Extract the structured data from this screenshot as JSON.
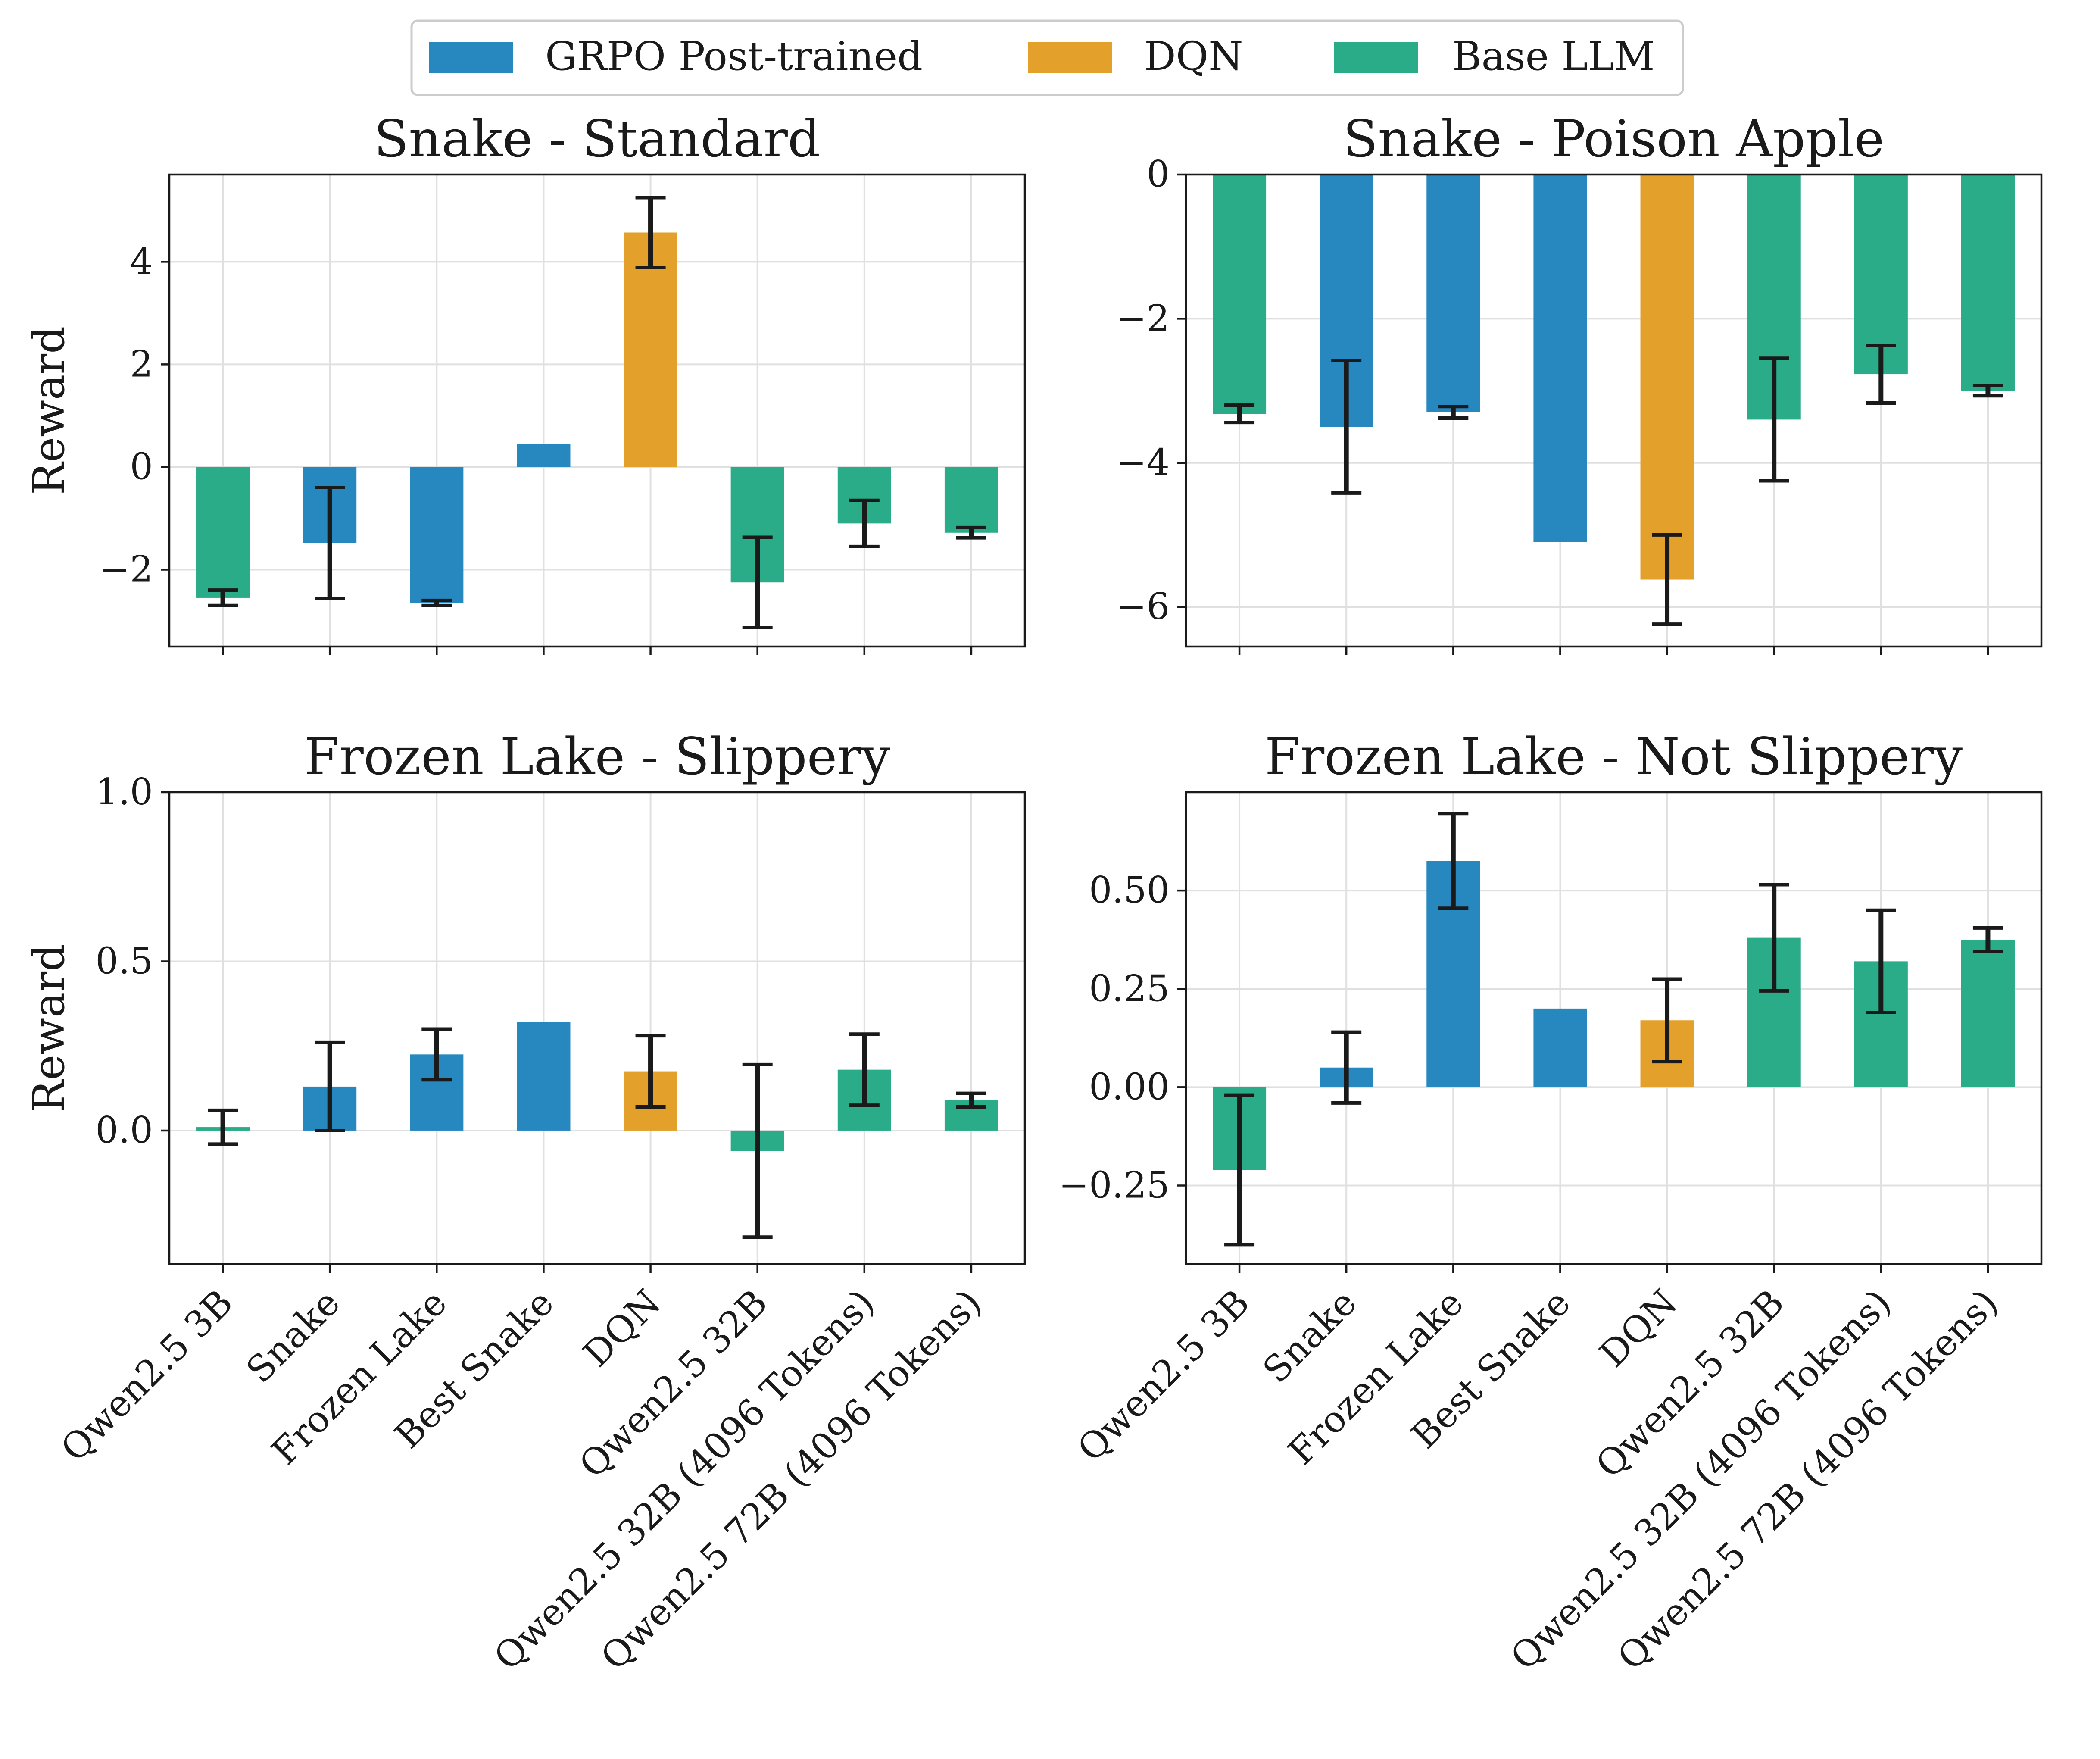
{
  "legend": {
    "entries": [
      {
        "label": "GRPO Post-trained",
        "color": "#2788c0"
      },
      {
        "label": "DQN",
        "color": "#e3a12c"
      },
      {
        "label": "Base LLM",
        "color": "#2aac88"
      }
    ]
  },
  "chart_data": [
    {
      "type": "bar",
      "title": "Snake - Standard",
      "xlabel": "",
      "ylabel": "Reward",
      "ylim": [
        -3.5,
        5.7
      ],
      "yticks": [
        -2,
        0,
        2,
        4
      ],
      "ytick_labels": [
        "−2",
        "0",
        "2",
        "4"
      ],
      "show_xtick_labels": false,
      "categories": [
        "Qwen2.5 3B",
        "Snake",
        "Frozen Lake",
        "Best Snake",
        "DQN",
        "Qwen2.5 32B",
        "Qwen2.5 32B (4096 Tokens)",
        "Qwen2.5 72B (4096 Tokens)"
      ],
      "groups": [
        "Base LLM",
        "GRPO Post-trained",
        "GRPO Post-trained",
        "GRPO Post-trained",
        "DQN",
        "Base LLM",
        "Base LLM",
        "Base LLM"
      ],
      "values": [
        -2.55,
        -1.48,
        -2.65,
        0.45,
        4.57,
        -2.25,
        -1.1,
        -1.28
      ],
      "errors": [
        0.15,
        1.08,
        0.05,
        0,
        0.68,
        0.88,
        0.45,
        0.1
      ]
    },
    {
      "type": "bar",
      "title": "Snake - Poison Apple",
      "xlabel": "",
      "ylabel": "",
      "ylim": [
        -6.55,
        0
      ],
      "yticks": [
        -6,
        -4,
        -2,
        0
      ],
      "ytick_labels": [
        "−6",
        "−4",
        "−2",
        "0"
      ],
      "show_xtick_labels": false,
      "categories": [
        "Qwen2.5 3B",
        "Snake",
        "Frozen Lake",
        "Best Snake",
        "DQN",
        "Qwen2.5 32B",
        "Qwen2.5 32B (4096 Tokens)",
        "Qwen2.5 72B (4096 Tokens)"
      ],
      "groups": [
        "Base LLM",
        "GRPO Post-trained",
        "GRPO Post-trained",
        "GRPO Post-trained",
        "DQN",
        "Base LLM",
        "Base LLM",
        "Base LLM"
      ],
      "values": [
        -3.32,
        -3.5,
        -3.3,
        -5.1,
        -5.62,
        -3.4,
        -2.77,
        -3.0
      ],
      "errors": [
        0.12,
        0.92,
        0.08,
        0,
        0.62,
        0.85,
        0.4,
        0.07
      ]
    },
    {
      "type": "bar",
      "title": "Frozen Lake - Slippery",
      "xlabel": "",
      "ylabel": "Reward",
      "ylim": [
        -0.395,
        1.0
      ],
      "yticks": [
        0.0,
        0.5,
        1.0
      ],
      "ytick_labels": [
        "0.0",
        "0.5",
        "1.0"
      ],
      "show_xtick_labels": true,
      "categories": [
        "Qwen2.5 3B",
        "Snake",
        "Frozen Lake",
        "Best Snake",
        "DQN",
        "Qwen2.5 32B",
        "Qwen2.5 32B (4096 Tokens)",
        "Qwen2.5 72B (4096 Tokens)"
      ],
      "groups": [
        "Base LLM",
        "GRPO Post-trained",
        "GRPO Post-trained",
        "GRPO Post-trained",
        "DQN",
        "Base LLM",
        "Base LLM",
        "Base LLM"
      ],
      "values": [
        0.01,
        0.13,
        0.225,
        0.32,
        0.175,
        -0.06,
        0.18,
        0.09
      ],
      "errors": [
        0.05,
        0.13,
        0.075,
        0,
        0.105,
        0.255,
        0.105,
        0.02
      ]
    },
    {
      "type": "bar",
      "title": "Frozen Lake - Not Slippery",
      "xlabel": "",
      "ylabel": "",
      "ylim": [
        -0.45,
        0.75
      ],
      "yticks": [
        -0.25,
        0.0,
        0.25,
        0.5
      ],
      "ytick_labels": [
        "−0.25",
        "0.00",
        "0.25",
        "0.50"
      ],
      "show_xtick_labels": true,
      "categories": [
        "Qwen2.5 3B",
        "Snake",
        "Frozen Lake",
        "Best Snake",
        "DQN",
        "Qwen2.5 32B",
        "Qwen2.5 32B (4096 Tokens)",
        "Qwen2.5 72B (4096 Tokens)"
      ],
      "groups": [
        "Base LLM",
        "GRPO Post-trained",
        "GRPO Post-trained",
        "GRPO Post-trained",
        "DQN",
        "Base LLM",
        "Base LLM",
        "Base LLM"
      ],
      "values": [
        -0.21,
        0.05,
        0.575,
        0.2,
        0.17,
        0.38,
        0.32,
        0.375
      ],
      "errors": [
        0.19,
        0.09,
        0.12,
        0,
        0.105,
        0.135,
        0.13,
        0.03
      ]
    }
  ]
}
